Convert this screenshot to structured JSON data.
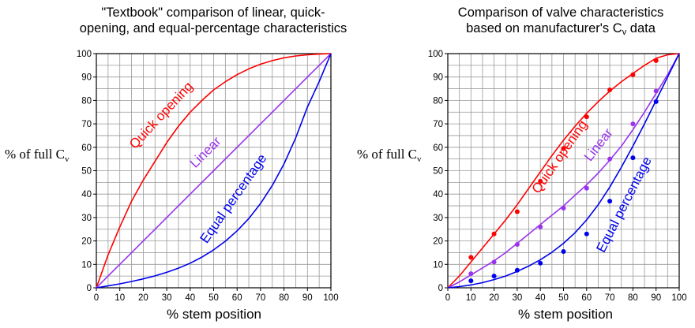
{
  "chart_data": [
    {
      "type": "line",
      "title_lines": [
        "\"Textbook\" comparison of linear, quick-",
        "opening, and equal-percentage characteristics"
      ],
      "xlabel": "% stem position",
      "ylabel_main": "% of full C",
      "ylabel_sub": "v",
      "xlim": [
        0,
        100
      ],
      "ylim": [
        0,
        100
      ],
      "x_ticks": [
        0,
        10,
        20,
        30,
        40,
        50,
        60,
        70,
        80,
        90,
        100
      ],
      "y_ticks": [
        0,
        10,
        20,
        30,
        40,
        50,
        60,
        70,
        80,
        90,
        100
      ],
      "grid": true,
      "grid_minor_step": 5,
      "x": [
        0,
        5,
        10,
        15,
        20,
        25,
        30,
        35,
        40,
        45,
        50,
        55,
        60,
        65,
        70,
        75,
        80,
        85,
        90,
        95,
        100
      ],
      "series": [
        {
          "name": "Quick opening",
          "color": "#ff0000",
          "values": [
            0,
            14,
            26,
            37,
            46,
            54,
            62,
            69,
            75,
            80,
            84.5,
            88,
            91,
            93.5,
            95.5,
            97,
            98.2,
            99,
            99.5,
            99.8,
            100
          ]
        },
        {
          "name": "Linear",
          "color": "#9933ee",
          "values": [
            0,
            5,
            10,
            15,
            20,
            25,
            30,
            35,
            40,
            45,
            50,
            55,
            60,
            65,
            70,
            75,
            80,
            85,
            90,
            95,
            100
          ]
        },
        {
          "name": "Equal percentage",
          "color": "#0000ee",
          "values": [
            0,
            0.8,
            1.7,
            2.7,
            3.8,
            5.1,
            6.6,
            8.4,
            10.5,
            13.1,
            16.2,
            19.9,
            24.3,
            29.6,
            36,
            43.7,
            52.9,
            64,
            77.2,
            88,
            100
          ]
        }
      ]
    },
    {
      "type": "line",
      "title_lines": [
        "Comparison of valve characteristics",
        "based on manufacturer's C",
        "v",
        " data"
      ],
      "xlabel": "% stem position",
      "ylabel_main": "% of full C",
      "ylabel_sub": "v",
      "xlim": [
        0,
        100
      ],
      "ylim": [
        0,
        100
      ],
      "x_ticks": [
        0,
        10,
        20,
        30,
        40,
        50,
        60,
        70,
        80,
        90,
        100
      ],
      "y_ticks": [
        0,
        10,
        20,
        30,
        40,
        50,
        60,
        70,
        80,
        90,
        100
      ],
      "grid": true,
      "grid_minor_step": 5,
      "x": [
        0,
        5,
        10,
        15,
        20,
        25,
        30,
        35,
        40,
        45,
        50,
        55,
        60,
        65,
        70,
        75,
        80,
        85,
        90,
        95,
        100
      ],
      "series": [
        {
          "name": "Quick opening",
          "color": "#ff0000",
          "values": [
            0,
            5,
            11,
            17,
            23,
            29,
            35.5,
            42.5,
            49.5,
            56.5,
            63,
            69,
            74.5,
            79.5,
            84,
            88,
            91.5,
            95,
            98,
            99.5,
            100
          ],
          "points_x": [
            10,
            20,
            30,
            40,
            50,
            60,
            70,
            80,
            90
          ],
          "points_y": [
            13,
            23,
            32.5,
            45.5,
            59.5,
            73,
            84.5,
            91,
            97
          ]
        },
        {
          "name": "Linear",
          "color": "#9933ee",
          "values": [
            0,
            2.5,
            5.5,
            8.5,
            11.5,
            15,
            19,
            23,
            27,
            31,
            35,
            39.5,
            44,
            49,
            54.5,
            60.5,
            67.5,
            75,
            83,
            91,
            100
          ],
          "points_x": [
            10,
            20,
            30,
            40,
            50,
            60,
            70,
            80,
            90
          ],
          "points_y": [
            6,
            11,
            18.5,
            26,
            34,
            42.5,
            55,
            70,
            84
          ]
        },
        {
          "name": "Equal percentage",
          "color": "#0000ee",
          "values": [
            0,
            0.5,
            1.2,
            2.2,
            3.5,
            5,
            7,
            9.3,
            12,
            15.2,
            19,
            23.5,
            29,
            35.5,
            43,
            51.5,
            60.5,
            70,
            80,
            90,
            100
          ],
          "points_x": [
            10,
            20,
            30,
            40,
            50,
            60,
            70,
            80,
            90
          ],
          "points_y": [
            3,
            5,
            7.5,
            10.5,
            15.5,
            23,
            37,
            55.5,
            79.5
          ]
        }
      ]
    }
  ]
}
